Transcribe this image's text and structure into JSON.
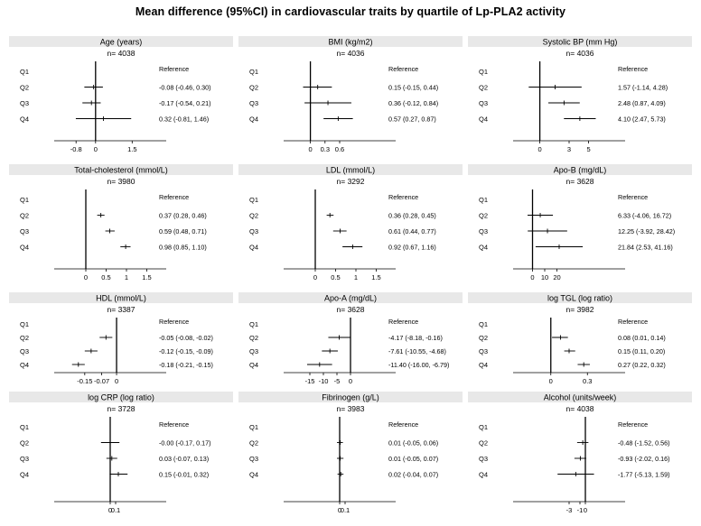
{
  "title": "Mean difference (95%CI) in cardiovascular  traits by quartile of Lp-PLA2 activity",
  "quartile_labels": [
    "Q1",
    "Q2",
    "Q3",
    "Q4"
  ],
  "reference_label": "Reference",
  "chart_data": [
    {
      "type": "forest",
      "title": "Age (years)",
      "n_label": "n= 4038",
      "xlim": [
        -1.4,
        2.6
      ],
      "x_ticks": [
        -0.8,
        0,
        1.5
      ],
      "x_tick_labels": [
        "-0.8",
        "0",
        "1.5"
      ],
      "ci_labels": [
        "Reference",
        "-0.08 (-0.46, 0.30)",
        "-0.17 (-0.54, 0.21)",
        "0.32 (-0.81, 1.46)"
      ],
      "points": [
        {
          "q": "Q1",
          "est": 0,
          "lo": 0,
          "hi": 0,
          "reference": true
        },
        {
          "q": "Q2",
          "est": -0.08,
          "lo": -0.46,
          "hi": 0.3
        },
        {
          "q": "Q3",
          "est": -0.17,
          "lo": -0.54,
          "hi": 0.21
        },
        {
          "q": "Q4",
          "est": 0.32,
          "lo": -0.81,
          "hi": 1.46
        }
      ]
    },
    {
      "type": "forest",
      "title": "BMI (kg/m2)",
      "n_label": "n= 4036",
      "xlim": [
        -0.4,
        1.6
      ],
      "x_ticks": [
        0,
        0.3,
        0.6
      ],
      "x_tick_labels": [
        "0",
        "0.3",
        "0.6"
      ],
      "ci_labels": [
        "Reference",
        "0.15 (-0.15, 0.44)",
        "0.36 (-0.12, 0.84)",
        "0.57 (0.27, 0.87)"
      ],
      "points": [
        {
          "q": "Q1",
          "est": 0,
          "lo": 0,
          "hi": 0,
          "reference": true
        },
        {
          "q": "Q2",
          "est": 0.15,
          "lo": -0.15,
          "hi": 0.44
        },
        {
          "q": "Q3",
          "est": 0.36,
          "lo": -0.12,
          "hi": 0.84
        },
        {
          "q": "Q4",
          "est": 0.57,
          "lo": 0.27,
          "hi": 0.87
        }
      ]
    },
    {
      "type": "forest",
      "title": "Systolic BP (mm Hg)",
      "n_label": "n= 4036",
      "xlim": [
        -2.0,
        8.0
      ],
      "x_ticks": [
        0,
        3,
        5
      ],
      "x_tick_labels": [
        "0",
        "3",
        "5"
      ],
      "ci_labels": [
        "Reference",
        "1.57 (-1.14, 4.28)",
        "2.48 (0.87, 4.09)",
        "4.10 (2.47, 5.73)"
      ],
      "points": [
        {
          "q": "Q1",
          "est": 0,
          "lo": 0,
          "hi": 0,
          "reference": true
        },
        {
          "q": "Q2",
          "est": 1.57,
          "lo": -1.14,
          "hi": 4.28
        },
        {
          "q": "Q3",
          "est": 2.48,
          "lo": 0.87,
          "hi": 4.09
        },
        {
          "q": "Q4",
          "est": 4.1,
          "lo": 2.47,
          "hi": 5.73
        }
      ]
    },
    {
      "type": "forest",
      "title": "Total-cholesterol (mmol/L)",
      "n_label": "n= 3980",
      "xlim": [
        -0.6,
        1.8
      ],
      "x_ticks": [
        0,
        0.5,
        1,
        1.5
      ],
      "x_tick_labels": [
        "0",
        "0.5",
        "1",
        "1.5"
      ],
      "ci_labels": [
        "Reference",
        "0.37 (0.28, 0.46)",
        "0.59 (0.48, 0.71)",
        "0.98 (0.85, 1.10)"
      ],
      "points": [
        {
          "q": "Q1",
          "est": 0,
          "lo": 0,
          "hi": 0,
          "reference": true
        },
        {
          "q": "Q2",
          "est": 0.37,
          "lo": 0.28,
          "hi": 0.46
        },
        {
          "q": "Q3",
          "est": 0.59,
          "lo": 0.48,
          "hi": 0.71
        },
        {
          "q": "Q4",
          "est": 0.98,
          "lo": 0.85,
          "hi": 1.1
        }
      ]
    },
    {
      "type": "forest",
      "title": "LDL (mmol/L)",
      "n_label": "n= 3292",
      "xlim": [
        -0.6,
        1.8
      ],
      "x_ticks": [
        0,
        0.5,
        1,
        1.5
      ],
      "x_tick_labels": [
        "0",
        "0.5",
        "1",
        "1.5"
      ],
      "ci_labels": [
        "Reference",
        "0.36 (0.28, 0.45)",
        "0.61 (0.44, 0.77)",
        "0.92 (0.67, 1.16)"
      ],
      "points": [
        {
          "q": "Q1",
          "est": 0,
          "lo": 0,
          "hi": 0,
          "reference": true
        },
        {
          "q": "Q2",
          "est": 0.36,
          "lo": 0.28,
          "hi": 0.45
        },
        {
          "q": "Q3",
          "est": 0.61,
          "lo": 0.44,
          "hi": 0.77
        },
        {
          "q": "Q4",
          "est": 0.92,
          "lo": 0.67,
          "hi": 1.16
        }
      ]
    },
    {
      "type": "forest",
      "title": "Apo-B (mg/dL)",
      "n_label": "n= 3628",
      "xlim": [
        -10,
        70
      ],
      "x_ticks": [
        0,
        10,
        20
      ],
      "x_tick_labels": [
        "0",
        "10",
        "20"
      ],
      "ci_labels": [
        "Reference",
        "6.33 (-4.06, 16.72)",
        "12.25 (-3.92, 28.42)",
        "21.84 (2.53, 41.16)"
      ],
      "points": [
        {
          "q": "Q1",
          "est": 0,
          "lo": 0,
          "hi": 0,
          "reference": true
        },
        {
          "q": "Q2",
          "est": 6.33,
          "lo": -4.06,
          "hi": 16.72
        },
        {
          "q": "Q3",
          "est": 12.25,
          "lo": -3.92,
          "hi": 28.42
        },
        {
          "q": "Q4",
          "est": 21.84,
          "lo": 2.53,
          "hi": 41.16
        }
      ]
    },
    {
      "type": "forest",
      "title": "HDL (mmol/L)",
      "n_label": "n= 3387",
      "xlim": [
        -0.26,
        0.2
      ],
      "x_ticks": [
        -0.15,
        -0.07,
        0
      ],
      "x_tick_labels": [
        "-0.15",
        "-0.07",
        "0"
      ],
      "ci_labels": [
        "Reference",
        "-0.05 (-0.08, -0.02)",
        "-0.12 (-0.15, -0.09)",
        "-0.18 (-0.21, -0.15)"
      ],
      "points": [
        {
          "q": "Q1",
          "est": 0,
          "lo": 0,
          "hi": 0,
          "reference": true
        },
        {
          "q": "Q2",
          "est": -0.05,
          "lo": -0.08,
          "hi": -0.02
        },
        {
          "q": "Q3",
          "est": -0.12,
          "lo": -0.15,
          "hi": -0.09
        },
        {
          "q": "Q4",
          "est": -0.18,
          "lo": -0.21,
          "hi": -0.15
        }
      ]
    },
    {
      "type": "forest",
      "title": "Apo-A (mg/dL)",
      "n_label": "n= 3628",
      "xlim": [
        -22,
        14
      ],
      "x_ticks": [
        -15,
        -10,
        -5,
        0
      ],
      "x_tick_labels": [
        "-15",
        "-10",
        "-5",
        "0"
      ],
      "ci_labels": [
        "Reference",
        "-4.17 (-8.18, -0.16)",
        "-7.61 (-10.55, -4.68)",
        "-11.40 (-16.00, -6.79)"
      ],
      "points": [
        {
          "q": "Q1",
          "est": 0,
          "lo": 0,
          "hi": 0,
          "reference": true
        },
        {
          "q": "Q2",
          "est": -4.17,
          "lo": -8.18,
          "hi": -0.16
        },
        {
          "q": "Q3",
          "est": -7.61,
          "lo": -10.55,
          "hi": -4.68
        },
        {
          "q": "Q4",
          "est": -11.4,
          "lo": -16.0,
          "hi": -6.79
        }
      ]
    },
    {
      "type": "forest",
      "title": "log TGL (log ratio)",
      "n_label": "n= 3982",
      "xlim": [
        -0.25,
        0.55
      ],
      "x_ticks": [
        0,
        0.3
      ],
      "x_tick_labels": [
        "0",
        "0.3"
      ],
      "ci_labels": [
        "Reference",
        "0.08 (0.01, 0.14)",
        "0.15 (0.11, 0.20)",
        "0.27 (0.22, 0.32)"
      ],
      "points": [
        {
          "q": "Q1",
          "est": 0,
          "lo": 0,
          "hi": 0,
          "reference": true
        },
        {
          "q": "Q2",
          "est": 0.08,
          "lo": 0.01,
          "hi": 0.14
        },
        {
          "q": "Q3",
          "est": 0.15,
          "lo": 0.11,
          "hi": 0.2
        },
        {
          "q": "Q4",
          "est": 0.27,
          "lo": 0.22,
          "hi": 0.32
        }
      ]
    },
    {
      "type": "forest",
      "title": "log CRP (log ratio)",
      "n_label": "n= 3728",
      "xlim": [
        -0.9,
        0.9
      ],
      "x_ticks": [
        0,
        0.1
      ],
      "x_tick_labels": [
        "0",
        "0.1"
      ],
      "ci_labels": [
        "Reference",
        "-0.00 (-0.17, 0.17)",
        "0.03 (-0.07, 0.13)",
        "0.15 (-0.01, 0.32)"
      ],
      "points": [
        {
          "q": "Q1",
          "est": 0,
          "lo": 0,
          "hi": 0,
          "reference": true
        },
        {
          "q": "Q2",
          "est": 0.0,
          "lo": -0.17,
          "hi": 0.17
        },
        {
          "q": "Q3",
          "est": 0.03,
          "lo": -0.07,
          "hi": 0.13
        },
        {
          "q": "Q4",
          "est": 0.15,
          "lo": -0.01,
          "hi": 0.32
        }
      ]
    },
    {
      "type": "forest",
      "title": "Fibrinogen (g/L)",
      "n_label": "n= 3983",
      "xlim": [
        -0.9,
        0.9
      ],
      "x_ticks": [
        0,
        0.1
      ],
      "x_tick_labels": [
        "0",
        "0.1"
      ],
      "ci_labels": [
        "Reference",
        "0.01 (-0.05, 0.06)",
        "0.01 (-0.05, 0.07)",
        "0.02 (-0.04, 0.07)"
      ],
      "points": [
        {
          "q": "Q1",
          "est": 0,
          "lo": 0,
          "hi": 0,
          "reference": true
        },
        {
          "q": "Q2",
          "est": 0.01,
          "lo": -0.05,
          "hi": 0.06
        },
        {
          "q": "Q3",
          "est": 0.01,
          "lo": -0.05,
          "hi": 0.07
        },
        {
          "q": "Q4",
          "est": 0.02,
          "lo": -0.04,
          "hi": 0.07
        }
      ]
    },
    {
      "type": "forest",
      "title": "Alcohol (units/week)",
      "n_label": "n= 4038",
      "xlim": [
        -12,
        6
      ],
      "x_ticks": [
        -3,
        -1,
        0
      ],
      "x_tick_labels": [
        "-3",
        "-1",
        "0"
      ],
      "ci_labels": [
        "Reference",
        "-0.48 (-1.52, 0.56)",
        "-0.93 (-2.02, 0.16)",
        "-1.77 (-5.13, 1.59)"
      ],
      "points": [
        {
          "q": "Q1",
          "est": 0,
          "lo": 0,
          "hi": 0,
          "reference": true
        },
        {
          "q": "Q2",
          "est": -0.48,
          "lo": -1.52,
          "hi": 0.56
        },
        {
          "q": "Q3",
          "est": -0.93,
          "lo": -2.02,
          "hi": 0.16
        },
        {
          "q": "Q4",
          "est": -1.77,
          "lo": -5.13,
          "hi": 1.59
        }
      ]
    }
  ]
}
